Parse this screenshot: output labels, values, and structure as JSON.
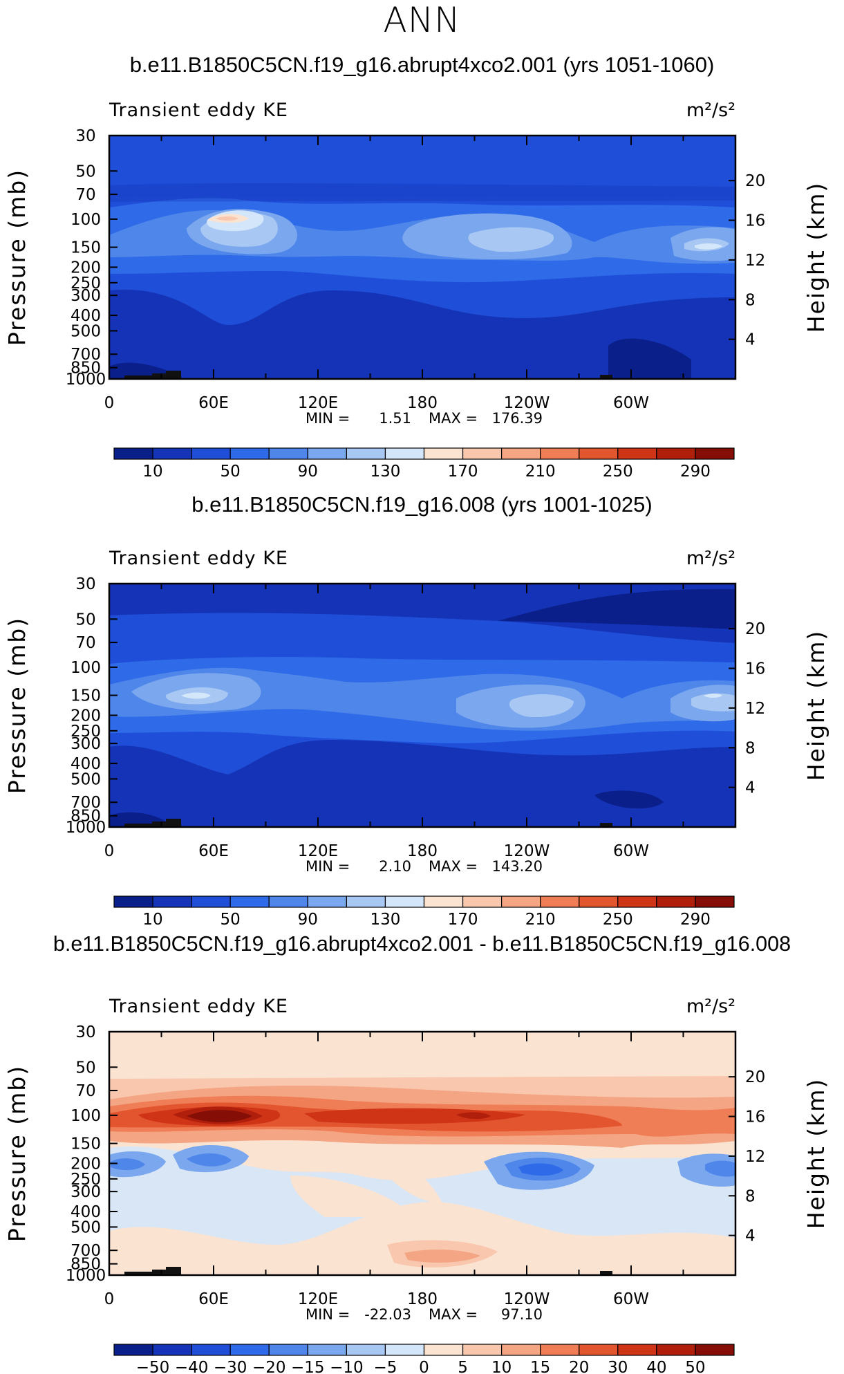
{
  "season": "ANN",
  "chart_data": [
    {
      "type": "heatmap",
      "title": "b.e11.B1850C5CN.f19_g16.abrupt4xco2.001 (yrs 1051-1060)",
      "left_string": "Transient eddy KE",
      "units": "m²/s²",
      "ylabel": "Pressure (mb)",
      "ylabel_right": "Height (km)",
      "x_ticks": [
        "0",
        "60E",
        "120E",
        "180",
        "120W",
        "60W"
      ],
      "y_ticks": [
        "30",
        "50",
        "70",
        "100",
        "150",
        "200",
        "250",
        "300",
        "400",
        "500",
        "700",
        "850",
        "1000"
      ],
      "height_ticks": [
        "20",
        "16",
        "12",
        "8",
        "4"
      ],
      "min_label": "MIN =",
      "min_value": "1.51",
      "max_label": "MAX =",
      "max_value": "176.39",
      "colorbar_labels": [
        "10",
        "50",
        "90",
        "130",
        "170",
        "210",
        "250",
        "290"
      ],
      "colorbar_colors": [
        "#0a1f8a",
        "#1533b6",
        "#1f4fd8",
        "#2f6ae8",
        "#4f86ea",
        "#7ba7ee",
        "#a8c8f3",
        "#d4e6fa",
        "#fbe3d2",
        "#f8c7ad",
        "#f4a584",
        "#ef7d55",
        "#e2552f",
        "#cf3416",
        "#b01f0c",
        "#850f06"
      ]
    },
    {
      "type": "heatmap",
      "title": "b.e11.B1850C5CN.f19_g16.008 (yrs 1001-1025)",
      "left_string": "Transient eddy KE",
      "units": "m²/s²",
      "ylabel": "Pressure (mb)",
      "ylabel_right": "Height (km)",
      "x_ticks": [
        "0",
        "60E",
        "120E",
        "180",
        "120W",
        "60W"
      ],
      "y_ticks": [
        "30",
        "50",
        "70",
        "100",
        "150",
        "200",
        "250",
        "300",
        "400",
        "500",
        "700",
        "850",
        "1000"
      ],
      "height_ticks": [
        "20",
        "16",
        "12",
        "8",
        "4"
      ],
      "min_label": "MIN =",
      "min_value": "2.10",
      "max_label": "MAX =",
      "max_value": "143.20",
      "colorbar_labels": [
        "10",
        "50",
        "90",
        "130",
        "170",
        "210",
        "250",
        "290"
      ],
      "colorbar_colors": [
        "#0a1f8a",
        "#1533b6",
        "#1f4fd8",
        "#2f6ae8",
        "#4f86ea",
        "#7ba7ee",
        "#a8c8f3",
        "#d4e6fa",
        "#fbe3d2",
        "#f8c7ad",
        "#f4a584",
        "#ef7d55",
        "#e2552f",
        "#cf3416",
        "#b01f0c",
        "#850f06"
      ]
    },
    {
      "type": "heatmap",
      "title": "b.e11.B1850C5CN.f19_g16.abrupt4xco2.001 - b.e11.B1850C5CN.f19_g16.008",
      "left_string": "Transient eddy KE",
      "units": "m²/s²",
      "ylabel": "Pressure (mb)",
      "ylabel_right": "Height (km)",
      "x_ticks": [
        "0",
        "60E",
        "120E",
        "180",
        "120W",
        "60W"
      ],
      "y_ticks": [
        "30",
        "50",
        "70",
        "100",
        "150",
        "200",
        "250",
        "300",
        "400",
        "500",
        "700",
        "850",
        "1000"
      ],
      "height_ticks": [
        "20",
        "16",
        "12",
        "8",
        "4"
      ],
      "min_label": "MIN =",
      "min_value": "-22.03",
      "max_label": "MAX =",
      "max_value": "97.10",
      "colorbar_labels": [
        "−50",
        "−40",
        "−30",
        "−20",
        "−15",
        "−10",
        "−5",
        "0",
        "5",
        "10",
        "15",
        "20",
        "30",
        "40",
        "50"
      ],
      "colorbar_colors": [
        "#0a1f8a",
        "#1533b6",
        "#1f4fd8",
        "#2f6ae8",
        "#4f86ea",
        "#7ba7ee",
        "#a8c8f3",
        "#d4e6fa",
        "#fbe3d2",
        "#f8c7ad",
        "#f4a584",
        "#ef7d55",
        "#e2552f",
        "#cf3416",
        "#b01f0c",
        "#850f06"
      ]
    }
  ]
}
